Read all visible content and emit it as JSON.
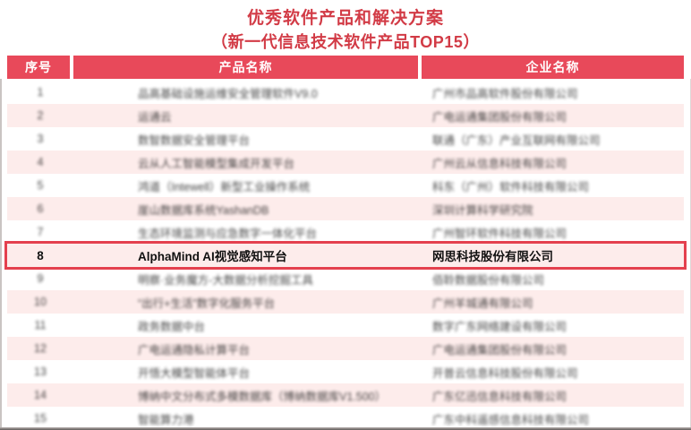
{
  "title": "优秀软件产品和解决方案",
  "subtitle": "（新一代信息技术软件产品TOP15）",
  "colors": {
    "accent_red": "#d23b46",
    "header_bg": "#e8495a",
    "stripe_pink": "#fdeceb",
    "highlight_border": "#e4404e"
  },
  "table": {
    "headers": [
      "序号",
      "产品名称",
      "企业名称"
    ],
    "highlighted_row_no": "8",
    "rows": [
      {
        "no": "1",
        "product": "品高基础设施运维安全管理软件V9.0",
        "company": "广州市品高软件股份有限公司"
      },
      {
        "no": "2",
        "product": "运通云",
        "company": "广电运通集团股份有限公司"
      },
      {
        "no": "3",
        "product": "数智数据安全管理平台",
        "company": "联通（广东）产业互联网有限公司"
      },
      {
        "no": "4",
        "product": "云从人工智能模型集成开发平台",
        "company": "广州云从信息科技有限公司"
      },
      {
        "no": "5",
        "product": "鸿道（Intewell）新型工业操作系统",
        "company": "科东（广州）软件科技有限公司"
      },
      {
        "no": "6",
        "product": "崖山数据库系统YashanDB",
        "company": "深圳计算科学研究院"
      },
      {
        "no": "7",
        "product": "生态环境监测与应急数字一体化平台",
        "company": "广州智环软件科技有限公司"
      },
      {
        "no": "8",
        "product": "AlphaMind AI视觉感知平台",
        "company": "网思科技股份有限公司"
      },
      {
        "no": "9",
        "product": "明察·业务魔方-大数据分析挖掘工具",
        "company": "佰聆数据股份有限公司"
      },
      {
        "no": "10",
        "product": "“出行+生活”数字化服务平台",
        "company": "广州羊城通有限公司"
      },
      {
        "no": "11",
        "product": "政务数据中台",
        "company": "数字广东网络建设有限公司"
      },
      {
        "no": "12",
        "product": "广电运通隐私计算平台",
        "company": "广电运通集团股份有限公司"
      },
      {
        "no": "13",
        "product": "开悟大模型智能体平台",
        "company": "开普云信息科技股份有限公司"
      },
      {
        "no": "14",
        "product": "博纳中文分布式多模数据库（博纳数据库V1.500）",
        "company": "广东亿迅信息科技有限公司"
      },
      {
        "no": "15",
        "product": "智能算力港",
        "company": "广东中科遥感信息科技有限公司"
      }
    ]
  }
}
